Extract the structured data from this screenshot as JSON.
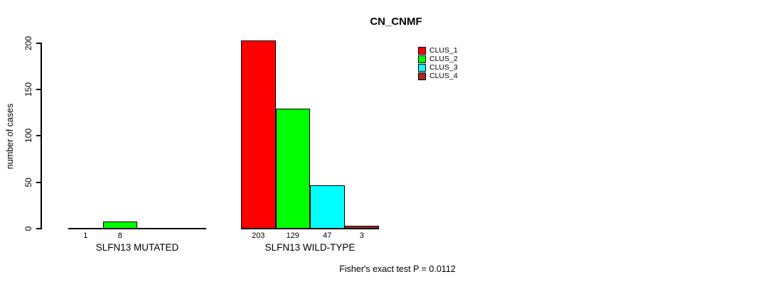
{
  "chart_data": {
    "type": "bar",
    "title": "CN_CNMF",
    "ylabel": "number of cases",
    "xlabel": "",
    "ylim": [
      0,
      200
    ],
    "yticks": [
      0,
      50,
      100,
      150,
      200
    ],
    "grid": false,
    "legend_position": "top-right-inside",
    "categories": [
      "SLFN13 MUTATED",
      "SLFN13 WILD-TYPE"
    ],
    "series": [
      {
        "name": "CLUS_1",
        "color": "#FF0000",
        "values": [
          1,
          203
        ]
      },
      {
        "name": "CLUS_2",
        "color": "#00FF00",
        "values": [
          8,
          129
        ]
      },
      {
        "name": "CLUS_3",
        "color": "#00FFFF",
        "values": [
          0,
          47
        ]
      },
      {
        "name": "CLUS_4",
        "color": "#A52A2A",
        "values": [
          0,
          3
        ]
      }
    ],
    "bar_value_labels": {
      "mutated": [
        "1",
        "8"
      ],
      "wild_type": [
        "203",
        "129",
        "47",
        "3"
      ],
      "rule": "shown only when value > 0"
    },
    "footnote": "Fisher's exact test P = 0.0112"
  }
}
